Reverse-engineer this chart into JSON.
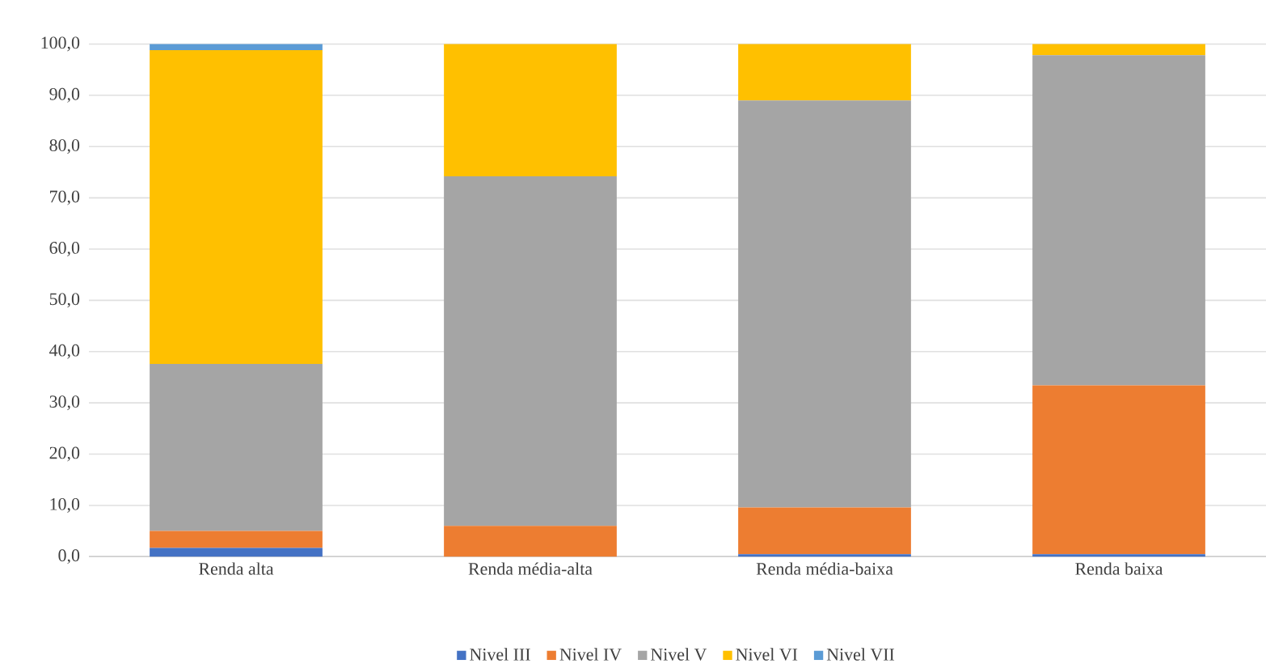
{
  "chart_data": {
    "type": "bar",
    "stacked": true,
    "categories": [
      "Renda alta",
      "Renda média-alta",
      "Renda média-baixa",
      "Renda baixa"
    ],
    "series": [
      {
        "name": "Nivel III",
        "color": "#4472c4",
        "values": [
          1.7,
          0,
          0.5,
          0.5
        ]
      },
      {
        "name": "Nivel IV",
        "color": "#ed7d31",
        "values": [
          3.3,
          6.0,
          9.1,
          32.9
        ]
      },
      {
        "name": "Nivel V",
        "color": "#a5a5a5",
        "values": [
          32.6,
          68.2,
          79.4,
          64.4
        ]
      },
      {
        "name": "Nivel VI",
        "color": "#ffc000",
        "values": [
          61.2,
          25.8,
          11.0,
          2.2
        ]
      },
      {
        "name": "Nivel VII",
        "color": "#5b9bd5",
        "values": [
          1.2,
          0,
          0,
          0
        ]
      }
    ],
    "ylim": [
      0,
      100
    ],
    "yticks": [
      {
        "value": 0,
        "label": "0,0"
      },
      {
        "value": 10,
        "label": "10,0"
      },
      {
        "value": 20,
        "label": "20,0"
      },
      {
        "value": 30,
        "label": "30,0"
      },
      {
        "value": 40,
        "label": "40,0"
      },
      {
        "value": 50,
        "label": "50,0"
      },
      {
        "value": 60,
        "label": "60,0"
      },
      {
        "value": 70,
        "label": "70,0"
      },
      {
        "value": 80,
        "label": "80,0"
      },
      {
        "value": 90,
        "label": "90,0"
      },
      {
        "value": 100,
        "label": "100,0"
      }
    ],
    "grid": "y",
    "legend": "bottom"
  }
}
